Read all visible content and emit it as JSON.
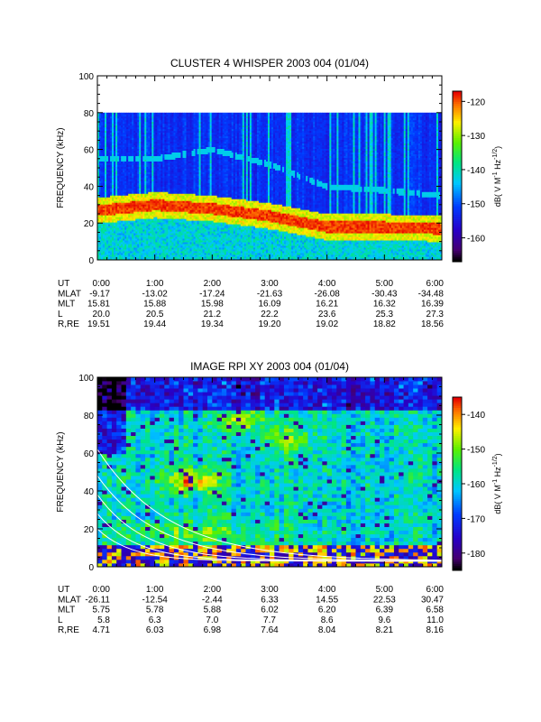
{
  "chart_data": [
    {
      "type": "heatmap",
      "title": "CLUSTER 4 WHISPER 2003 004 (01/04)",
      "ylabel": "FREQUENCY (kHz)",
      "ylim": [
        0,
        100
      ],
      "yticks": [
        "0",
        "20",
        "40",
        "60",
        "80",
        "100"
      ],
      "xticks": [
        "0:00",
        "1:00",
        "2:00",
        "3:00",
        "4:00",
        "5:00",
        "6:00"
      ],
      "data_top_khz": 80,
      "colorbar": {
        "label": "dB( V M⁻¹ Hz⁻¹ᐟ²)",
        "label_text": "dB( V M",
        "label_sup1": "-1",
        "label_mid": " Hz",
        "label_sup2": "-1/2",
        "label_end": ")",
        "range": [
          -167,
          -117
        ],
        "ticks": [
          "-120",
          "-130",
          "-140",
          "-150",
          "-160"
        ],
        "tick_values": [
          -120,
          -130,
          -140,
          -150,
          -160
        ]
      },
      "features": {
        "red_band_khz": [
          27,
          30,
          28,
          24,
          18,
          18,
          17
        ],
        "cyan_line_khz": [
          55,
          55,
          60,
          52,
          40,
          38,
          35
        ]
      },
      "ephemeris": [
        {
          "label": "UT",
          "values": [
            "0:00",
            "1:00",
            "2:00",
            "3:00",
            "4:00",
            "5:00",
            "6:00"
          ]
        },
        {
          "label": "MLAT",
          "values": [
            "-9.17",
            "-13.02",
            "-17.24",
            "-21.63",
            "-26.08",
            "-30.43",
            "-34.48"
          ]
        },
        {
          "label": "MLT",
          "values": [
            "15.81",
            "15.88",
            "15.98",
            "16.09",
            "16.21",
            "16.32",
            "16.39"
          ]
        },
        {
          "label": "L",
          "values": [
            "20.0",
            "20.5",
            "21.2",
            "22.2",
            "23.6",
            "25.3",
            "27.3"
          ]
        },
        {
          "label": "R,RE",
          "values": [
            "19.51",
            "19.44",
            "19.34",
            "19.20",
            "19.02",
            "18.82",
            "18.56"
          ]
        }
      ]
    },
    {
      "type": "heatmap",
      "title": "IMAGE RPI XY 2003 004 (01/04)",
      "ylabel": "FREQUENCY (kHz)",
      "ylim": [
        0,
        100
      ],
      "yticks": [
        "0",
        "20",
        "40",
        "60",
        "80",
        "100"
      ],
      "xticks": [
        "0:00",
        "1:00",
        "2:00",
        "3:00",
        "4:00",
        "5:00",
        "6:00"
      ],
      "data_top_khz": 100,
      "colorbar": {
        "label_text": "dB( V M",
        "label_sup1": "-1",
        "label_mid": " Hz",
        "label_sup2": "-1/2",
        "label_end": ")",
        "range": [
          -185,
          -135
        ],
        "ticks": [
          "-140",
          "-150",
          "-160",
          "-170",
          "-180"
        ],
        "tick_values": [
          -140,
          -150,
          -160,
          -170,
          -180
        ]
      },
      "ephemeris": [
        {
          "label": "UT",
          "values": [
            "0:00",
            "1:00",
            "2:00",
            "3:00",
            "4:00",
            "5:00",
            "6:00"
          ]
        },
        {
          "label": "MLAT",
          "values": [
            "-26.11",
            "-12.54",
            "-2.44",
            "6.33",
            "14.55",
            "22.53",
            "30.47"
          ]
        },
        {
          "label": "MLT",
          "values": [
            "5.75",
            "5.78",
            "5.88",
            "6.02",
            "6.20",
            "6.39",
            "6.58"
          ]
        },
        {
          "label": "L",
          "values": [
            "5.8",
            "6.3",
            "7.0",
            "7.7",
            "8.6",
            "9.6",
            "11.0"
          ]
        },
        {
          "label": "R,RE",
          "values": [
            "4.71",
            "6.03",
            "6.98",
            "7.64",
            "8.04",
            "8.21",
            "8.16"
          ]
        }
      ]
    }
  ]
}
